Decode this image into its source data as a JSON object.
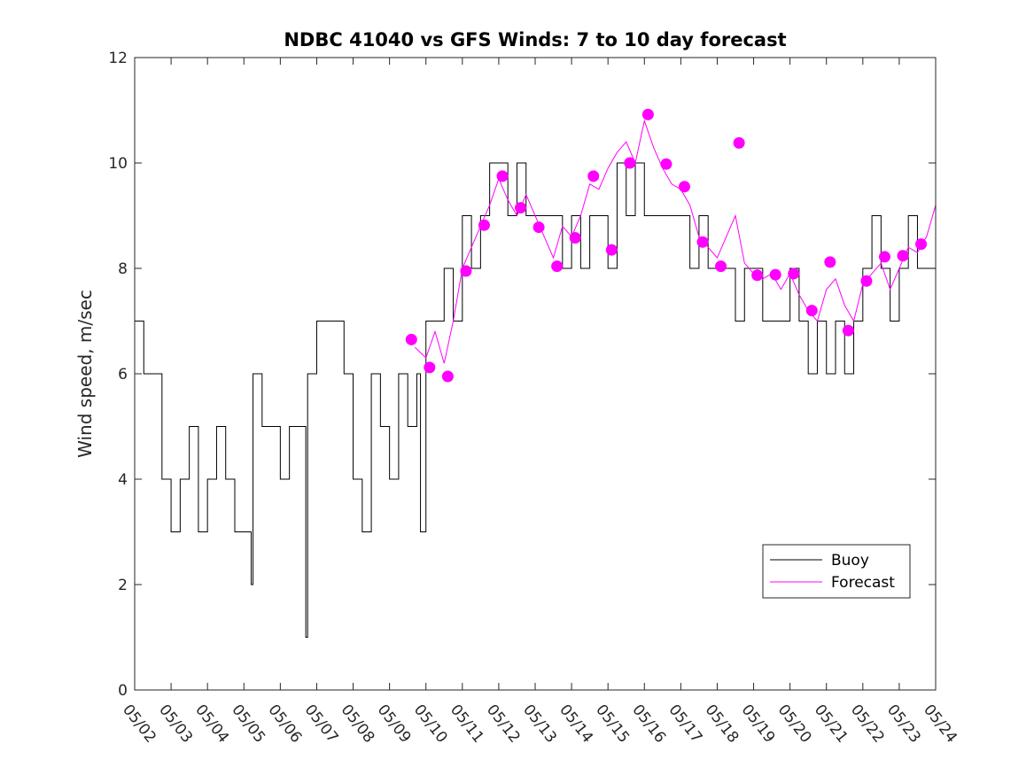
{
  "chart_data": {
    "type": "line",
    "title": "NDBC 41040 vs GFS Winds: 7 to 10 day forecast",
    "ylabel": "Wind speed, m/sec",
    "xlabel": "",
    "ylim": [
      0,
      12
    ],
    "yticks": [
      "0",
      "2",
      "4",
      "6",
      "8",
      "10",
      "12"
    ],
    "xlim": [
      2,
      24
    ],
    "xticks": [
      "05/02",
      "05/03",
      "05/04",
      "05/05",
      "05/06",
      "05/07",
      "05/08",
      "05/09",
      "05/10",
      "05/11",
      "05/12",
      "05/13",
      "05/14",
      "05/15",
      "05/16",
      "05/17",
      "05/18",
      "05/19",
      "05/20",
      "05/21",
      "05/22",
      "05/23",
      "05/24"
    ],
    "legend": {
      "position": "lower-right",
      "entries": [
        "Buoy",
        "Forecast"
      ]
    },
    "colors": {
      "buoy": "#000000",
      "forecast": "#ff00ff"
    },
    "series": [
      {
        "name": "Buoy",
        "x": [
          2.0,
          2.25,
          2.5,
          2.75,
          3.0,
          3.25,
          3.5,
          3.75,
          4.0,
          4.25,
          4.5,
          4.75,
          5.0,
          5.2,
          5.25,
          5.5,
          5.75,
          6.0,
          6.25,
          6.5,
          6.7,
          6.75,
          7.0,
          7.25,
          7.5,
          7.75,
          8.0,
          8.25,
          8.5,
          8.75,
          9.0,
          9.25,
          9.5,
          9.75,
          9.85,
          10.0,
          10.25,
          10.5,
          10.75,
          11.0,
          11.25,
          11.5,
          11.75,
          12.0,
          12.25,
          12.5,
          12.75,
          13.0,
          13.25,
          13.5,
          13.75,
          14.0,
          14.25,
          14.5,
          14.75,
          15.0,
          15.25,
          15.5,
          15.75,
          16.0,
          16.25,
          16.5,
          16.75,
          17.0,
          17.25,
          17.5,
          17.75,
          18.0,
          18.25,
          18.5,
          18.75,
          19.0,
          19.25,
          19.5,
          19.75,
          20.0,
          20.25,
          20.5,
          20.75,
          21.0,
          21.25,
          21.5,
          21.75,
          22.0,
          22.25,
          22.5,
          22.75,
          23.0,
          23.25,
          23.5,
          23.75,
          24.0
        ],
        "values": [
          7,
          6,
          6,
          4,
          3,
          4,
          5,
          3,
          4,
          5,
          4,
          3,
          3,
          2,
          6,
          5,
          5,
          4,
          5,
          5,
          1,
          6,
          7,
          7,
          7,
          6,
          4,
          3,
          6,
          5,
          4,
          6,
          5,
          6,
          3,
          7,
          7,
          8,
          7,
          9,
          8,
          9,
          10,
          10,
          9,
          10,
          9,
          9,
          9,
          9,
          8,
          9,
          8,
          9,
          9,
          8,
          10,
          9,
          10,
          9,
          9,
          9,
          9,
          9,
          8,
          9,
          8,
          8,
          8,
          7,
          8,
          8,
          7,
          7,
          7,
          8,
          7,
          6,
          7,
          6,
          7,
          6,
          7,
          8,
          9,
          8,
          7,
          8,
          9,
          8,
          8,
          8
        ]
      },
      {
        "name": "Forecast",
        "x": [
          9.7,
          10.0,
          10.25,
          10.5,
          10.75,
          11.0,
          11.25,
          11.5,
          11.75,
          12.0,
          12.25,
          12.5,
          12.75,
          13.0,
          13.25,
          13.5,
          13.75,
          14.0,
          14.25,
          14.5,
          14.75,
          15.0,
          15.25,
          15.5,
          15.75,
          16.0,
          16.25,
          16.5,
          16.75,
          17.0,
          17.25,
          17.5,
          17.75,
          18.0,
          18.25,
          18.5,
          18.75,
          19.0,
          19.25,
          19.5,
          19.75,
          20.0,
          20.25,
          20.5,
          20.75,
          21.0,
          21.25,
          21.5,
          21.75,
          22.0,
          22.25,
          22.5,
          22.75,
          23.0,
          23.25,
          23.5,
          23.75,
          24.0
        ],
        "values": [
          6.5,
          6.3,
          6.8,
          6.2,
          7.0,
          8.0,
          8.4,
          8.8,
          9.2,
          9.7,
          9.3,
          9.0,
          9.4,
          9.0,
          8.6,
          8.2,
          8.8,
          8.6,
          9.0,
          9.6,
          9.5,
          9.9,
          10.2,
          10.4,
          10.0,
          10.8,
          10.3,
          9.9,
          9.6,
          9.5,
          9.2,
          8.6,
          8.4,
          8.2,
          8.6,
          9.0,
          8.1,
          7.9,
          7.8,
          7.9,
          7.6,
          7.9,
          7.5,
          7.2,
          7.0,
          7.6,
          7.8,
          7.3,
          7.0,
          7.7,
          7.9,
          8.1,
          7.6,
          8.0,
          8.4,
          8.3,
          8.6,
          9.2
        ]
      }
    ],
    "forecast_markers": {
      "x": [
        9.6,
        10.1,
        10.6,
        11.1,
        11.6,
        12.1,
        12.6,
        13.1,
        13.6,
        14.1,
        14.6,
        15.1,
        15.6,
        16.1,
        16.6,
        17.1,
        17.6,
        18.1,
        18.6,
        19.1,
        19.6,
        20.1,
        20.6,
        21.1,
        21.6,
        22.1,
        22.6,
        23.1,
        23.6
      ],
      "values": [
        6.65,
        6.12,
        5.95,
        7.95,
        8.82,
        9.75,
        9.15,
        8.78,
        8.04,
        8.58,
        9.75,
        8.35,
        10.0,
        10.92,
        9.98,
        9.55,
        8.5,
        8.04,
        10.38,
        7.87,
        7.88,
        7.9,
        7.2,
        8.12,
        6.82,
        7.76,
        8.22,
        8.24,
        8.46
      ]
    }
  }
}
